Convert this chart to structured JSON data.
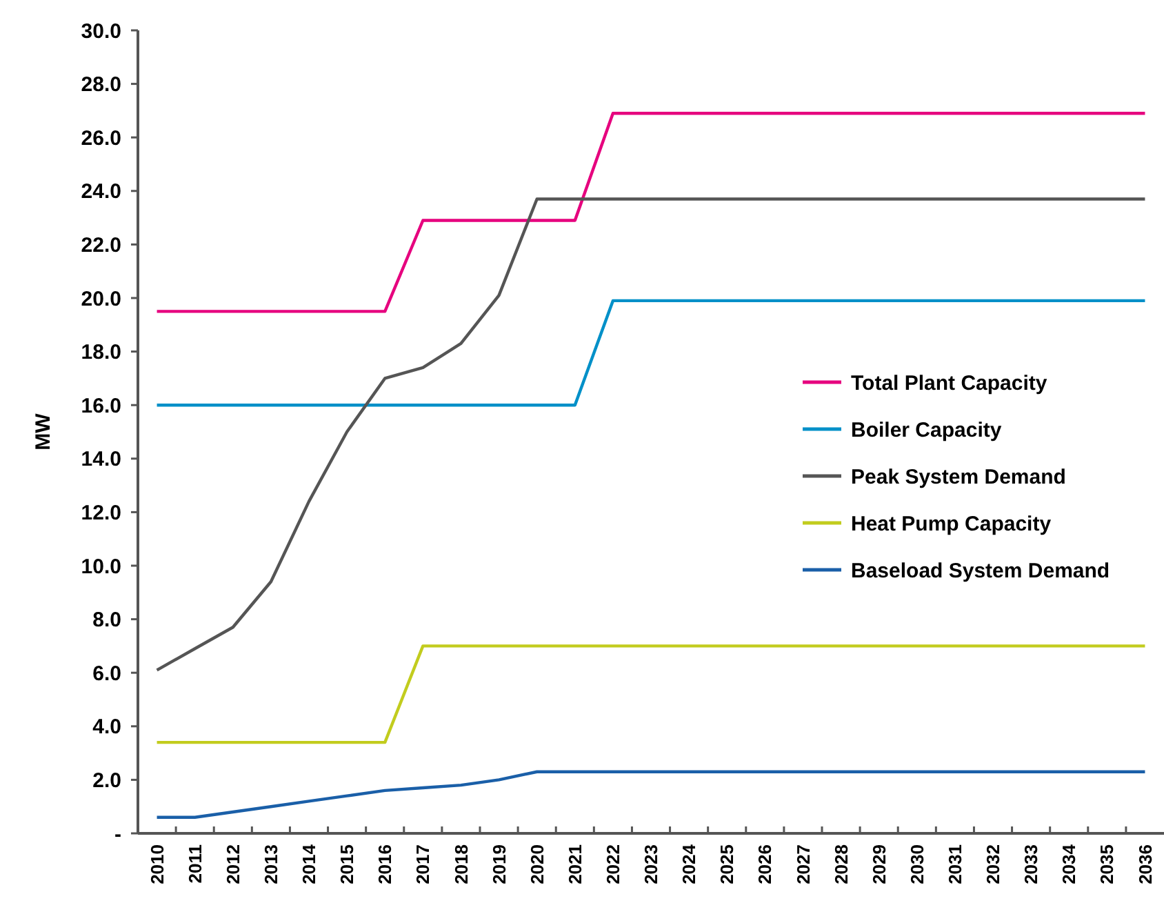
{
  "chart_data": {
    "type": "line",
    "ylabel": "MW",
    "categories": [
      "2010",
      "2011",
      "2012",
      "2013",
      "2014",
      "2015",
      "2016",
      "2017",
      "2018",
      "2019",
      "2020",
      "2021",
      "2022",
      "2023",
      "2024",
      "2025",
      "2026",
      "2027",
      "2028",
      "2029",
      "2030",
      "2031",
      "2032",
      "2033",
      "2034",
      "2035",
      "2036"
    ],
    "series": [
      {
        "name": "Total Plant Capacity",
        "color": "#e6007e",
        "values": [
          19.5,
          19.5,
          19.5,
          19.5,
          19.5,
          19.5,
          19.5,
          22.9,
          22.9,
          22.9,
          22.9,
          22.9,
          26.9,
          26.9,
          26.9,
          26.9,
          26.9,
          26.9,
          26.9,
          26.9,
          26.9,
          26.9,
          26.9,
          26.9,
          26.9,
          26.9,
          26.9
        ]
      },
      {
        "name": "Boiler Capacity",
        "color": "#0090c8",
        "values": [
          16.0,
          16.0,
          16.0,
          16.0,
          16.0,
          16.0,
          16.0,
          16.0,
          16.0,
          16.0,
          16.0,
          16.0,
          19.9,
          19.9,
          19.9,
          19.9,
          19.9,
          19.9,
          19.9,
          19.9,
          19.9,
          19.9,
          19.9,
          19.9,
          19.9,
          19.9,
          19.9
        ]
      },
      {
        "name": "Peak System Demand",
        "color": "#555555",
        "values": [
          6.1,
          6.9,
          7.7,
          9.4,
          12.4,
          15.0,
          17.0,
          17.4,
          18.3,
          20.1,
          23.7,
          23.7,
          23.7,
          23.7,
          23.7,
          23.7,
          23.7,
          23.7,
          23.7,
          23.7,
          23.7,
          23.7,
          23.7,
          23.7,
          23.7,
          23.7,
          23.7
        ]
      },
      {
        "name": "Heat Pump Capacity",
        "color": "#c2cc1e",
        "values": [
          3.4,
          3.4,
          3.4,
          3.4,
          3.4,
          3.4,
          3.4,
          7.0,
          7.0,
          7.0,
          7.0,
          7.0,
          7.0,
          7.0,
          7.0,
          7.0,
          7.0,
          7.0,
          7.0,
          7.0,
          7.0,
          7.0,
          7.0,
          7.0,
          7.0,
          7.0,
          7.0
        ]
      },
      {
        "name": "Baseload System Demand",
        "color": "#1a5fa8",
        "values": [
          0.6,
          0.6,
          0.8,
          1.0,
          1.2,
          1.4,
          1.6,
          1.7,
          1.8,
          2.0,
          2.3,
          2.3,
          2.3,
          2.3,
          2.3,
          2.3,
          2.3,
          2.3,
          2.3,
          2.3,
          2.3,
          2.3,
          2.3,
          2.3,
          2.3,
          2.3,
          2.3
        ]
      }
    ],
    "ylim": [
      0,
      30
    ],
    "yticks": [
      {
        "value": 0,
        "label": "-"
      },
      {
        "value": 2,
        "label": "2.0"
      },
      {
        "value": 4,
        "label": "4.0"
      },
      {
        "value": 6,
        "label": "6.0"
      },
      {
        "value": 8,
        "label": "8.0"
      },
      {
        "value": 10,
        "label": "10.0"
      },
      {
        "value": 12,
        "label": "12.0"
      },
      {
        "value": 14,
        "label": "14.0"
      },
      {
        "value": 16,
        "label": "16.0"
      },
      {
        "value": 18,
        "label": "18.0"
      },
      {
        "value": 20,
        "label": "20.0"
      },
      {
        "value": 22,
        "label": "22.0"
      },
      {
        "value": 24,
        "label": "24.0"
      },
      {
        "value": 26,
        "label": "26.0"
      },
      {
        "value": 28,
        "label": "28.0"
      },
      {
        "value": 30,
        "label": "30.0"
      }
    ],
    "grid": false,
    "legend": "right",
    "marker": "none",
    "line_style": "solid"
  }
}
